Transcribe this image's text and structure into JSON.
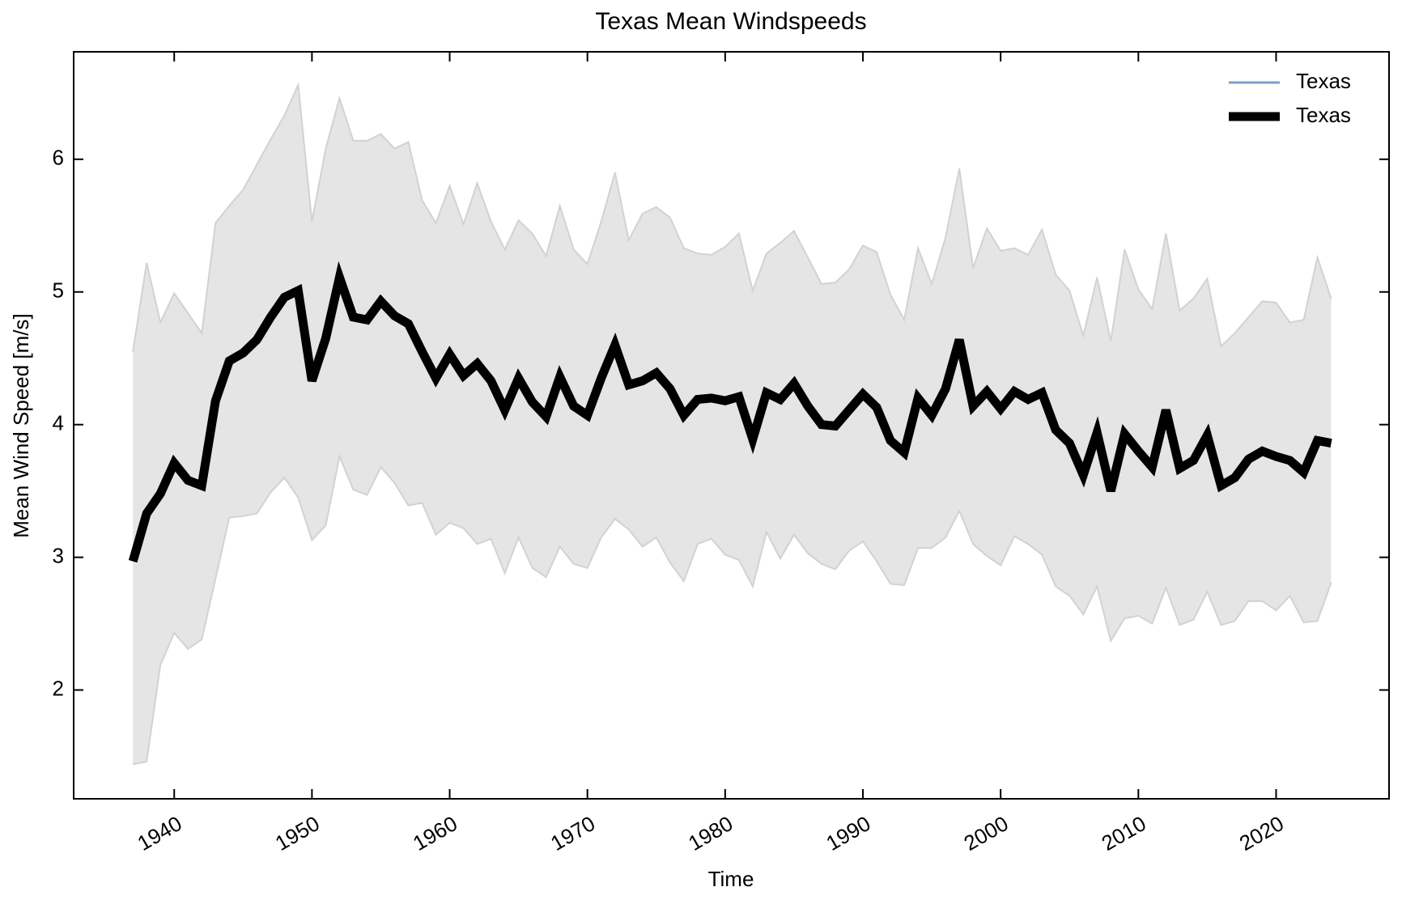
{
  "chart_data": {
    "type": "line",
    "title": "Texas Mean Windspeeds",
    "xlabel": "Time",
    "ylabel": "Mean Wind Speed [m/s]",
    "x": [
      1937,
      1938,
      1939,
      1940,
      1941,
      1942,
      1943,
      1944,
      1945,
      1946,
      1947,
      1948,
      1949,
      1950,
      1951,
      1952,
      1953,
      1954,
      1955,
      1956,
      1957,
      1958,
      1959,
      1960,
      1961,
      1962,
      1963,
      1964,
      1965,
      1966,
      1967,
      1968,
      1969,
      1970,
      1971,
      1972,
      1973,
      1974,
      1975,
      1976,
      1977,
      1978,
      1979,
      1980,
      1981,
      1982,
      1983,
      1984,
      1985,
      1986,
      1987,
      1988,
      1989,
      1990,
      1991,
      1992,
      1993,
      1994,
      1995,
      1996,
      1997,
      1998,
      1999,
      2000,
      2001,
      2002,
      2003,
      2004,
      2005,
      2006,
      2007,
      2008,
      2009,
      2010,
      2011,
      2012,
      2013,
      2014,
      2015,
      2016,
      2017,
      2018,
      2019,
      2020,
      2021,
      2022,
      2023,
      2024
    ],
    "series": [
      {
        "name": "Texas",
        "color": "#7aa0c8",
        "linewidth": 3,
        "values": [
          2.97,
          3.33,
          3.48,
          3.71,
          3.58,
          3.54,
          4.18,
          4.48,
          4.54,
          4.64,
          4.81,
          4.96,
          5.01,
          4.33,
          4.65,
          5.11,
          4.81,
          4.79,
          4.93,
          4.82,
          4.76,
          4.55,
          4.35,
          4.53,
          4.37,
          4.46,
          4.33,
          4.11,
          4.35,
          4.17,
          4.06,
          4.36,
          4.14,
          4.07,
          4.35,
          4.6,
          4.3,
          4.33,
          4.39,
          4.27,
          4.07,
          4.19,
          4.2,
          4.18,
          4.21,
          3.89,
          4.24,
          4.19,
          4.31,
          4.14,
          4.0,
          3.99,
          4.11,
          4.23,
          4.13,
          3.88,
          3.79,
          4.2,
          4.07,
          4.27,
          4.64,
          4.14,
          4.25,
          4.12,
          4.25,
          4.19,
          4.24,
          3.96,
          3.86,
          3.62,
          3.94,
          3.5,
          3.93,
          3.8,
          3.68,
          4.11,
          3.67,
          3.73,
          3.92,
          3.54,
          3.6,
          3.74,
          3.8,
          3.76,
          3.73,
          3.64,
          3.88,
          3.86
        ]
      },
      {
        "name": "Texas",
        "color": "#000000",
        "linewidth": 11,
        "values": [
          2.97,
          3.33,
          3.48,
          3.71,
          3.58,
          3.54,
          4.18,
          4.48,
          4.54,
          4.64,
          4.81,
          4.96,
          5.01,
          4.33,
          4.65,
          5.11,
          4.81,
          4.79,
          4.93,
          4.82,
          4.76,
          4.55,
          4.35,
          4.53,
          4.37,
          4.46,
          4.33,
          4.11,
          4.35,
          4.17,
          4.06,
          4.36,
          4.14,
          4.07,
          4.35,
          4.6,
          4.3,
          4.33,
          4.39,
          4.27,
          4.07,
          4.19,
          4.2,
          4.18,
          4.21,
          3.89,
          4.24,
          4.19,
          4.31,
          4.14,
          4.0,
          3.99,
          4.11,
          4.23,
          4.13,
          3.88,
          3.79,
          4.2,
          4.07,
          4.27,
          4.64,
          4.14,
          4.25,
          4.12,
          4.25,
          4.19,
          4.24,
          3.96,
          3.86,
          3.62,
          3.94,
          3.5,
          3.93,
          3.8,
          3.68,
          4.11,
          3.67,
          3.73,
          3.92,
          3.54,
          3.6,
          3.74,
          3.8,
          3.76,
          3.73,
          3.64,
          3.88,
          3.86
        ]
      }
    ],
    "band": {
      "color": "#e5e5e5",
      "edgecolor": "#d2d2d2",
      "upper": [
        4.55,
        5.22,
        4.77,
        4.99,
        4.84,
        4.69,
        5.52,
        5.65,
        5.77,
        5.96,
        6.15,
        6.33,
        6.56,
        5.53,
        6.08,
        6.46,
        6.14,
        6.14,
        6.19,
        6.08,
        6.13,
        5.69,
        5.52,
        5.8,
        5.51,
        5.82,
        5.53,
        5.32,
        5.54,
        5.44,
        5.27,
        5.65,
        5.32,
        5.21,
        5.53,
        5.9,
        5.39,
        5.59,
        5.64,
        5.56,
        5.33,
        5.29,
        5.28,
        5.34,
        5.44,
        5.01,
        5.29,
        5.37,
        5.46,
        5.26,
        5.06,
        5.07,
        5.17,
        5.35,
        5.3,
        4.98,
        4.79,
        5.33,
        5.06,
        5.41,
        5.93,
        5.18,
        5.48,
        5.31,
        5.33,
        5.28,
        5.47,
        5.13,
        5.01,
        4.67,
        5.11,
        4.63,
        5.32,
        5.02,
        4.87,
        5.44,
        4.86,
        4.95,
        5.1,
        4.59,
        4.69,
        4.81,
        4.93,
        4.92,
        4.77,
        4.79,
        5.26,
        4.95
      ],
      "lower": [
        1.44,
        1.46,
        2.19,
        2.43,
        2.31,
        2.38,
        2.84,
        3.3,
        3.31,
        3.33,
        3.49,
        3.6,
        3.45,
        3.13,
        3.24,
        3.76,
        3.51,
        3.47,
        3.68,
        3.56,
        3.39,
        3.41,
        3.17,
        3.26,
        3.22,
        3.1,
        3.14,
        2.88,
        3.15,
        2.92,
        2.85,
        3.08,
        2.95,
        2.92,
        3.15,
        3.29,
        3.21,
        3.08,
        3.15,
        2.96,
        2.82,
        3.1,
        3.14,
        3.02,
        2.98,
        2.78,
        3.19,
        2.99,
        3.17,
        3.03,
        2.95,
        2.91,
        3.05,
        3.12,
        2.97,
        2.8,
        2.79,
        3.07,
        3.07,
        3.15,
        3.35,
        3.1,
        3.01,
        2.94,
        3.16,
        3.1,
        3.02,
        2.78,
        2.71,
        2.57,
        2.78,
        2.37,
        2.54,
        2.56,
        2.5,
        2.77,
        2.49,
        2.53,
        2.74,
        2.49,
        2.52,
        2.67,
        2.67,
        2.6,
        2.71,
        2.51,
        2.52,
        2.81
      ]
    },
    "xlim": [
      1932.7,
      2028.2
    ],
    "xticks": [
      1940,
      1950,
      1960,
      1970,
      1980,
      1990,
      2000,
      2010,
      2020
    ],
    "ylim": [
      1.18,
      6.81
    ],
    "yticks": [
      2,
      3,
      4,
      5,
      6
    ],
    "legend": "upper right",
    "grid": false
  }
}
